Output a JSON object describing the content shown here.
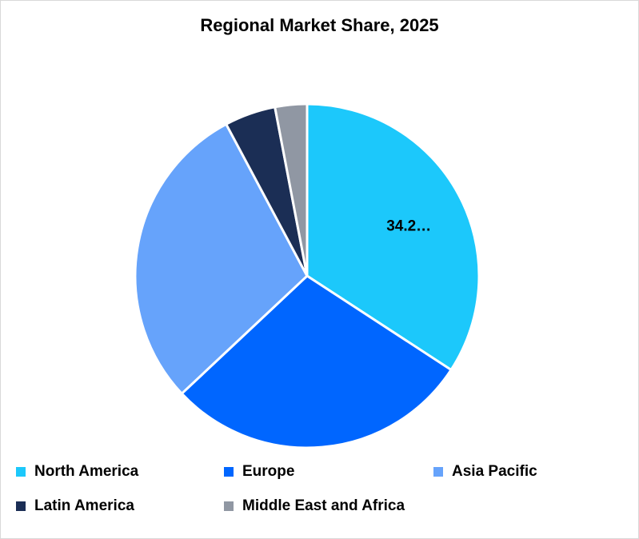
{
  "chart_data": {
    "type": "pie",
    "title": "Regional Market Share, 2025",
    "categories": [
      "North America",
      "Europe",
      "Asia Pacific",
      "Latin America",
      "Middle East and Africa"
    ],
    "values": [
      34.2,
      28.8,
      29.2,
      4.8,
      3.0
    ],
    "colors": [
      "#1cc8fb",
      "#0066ff",
      "#66a3fb",
      "#1b2e55",
      "#9097a3"
    ],
    "data_labels": [
      {
        "series_index": 0,
        "text": "34.2…"
      }
    ],
    "start_angle_deg": 0,
    "direction": "clockwise",
    "legend_position": "bottom"
  }
}
